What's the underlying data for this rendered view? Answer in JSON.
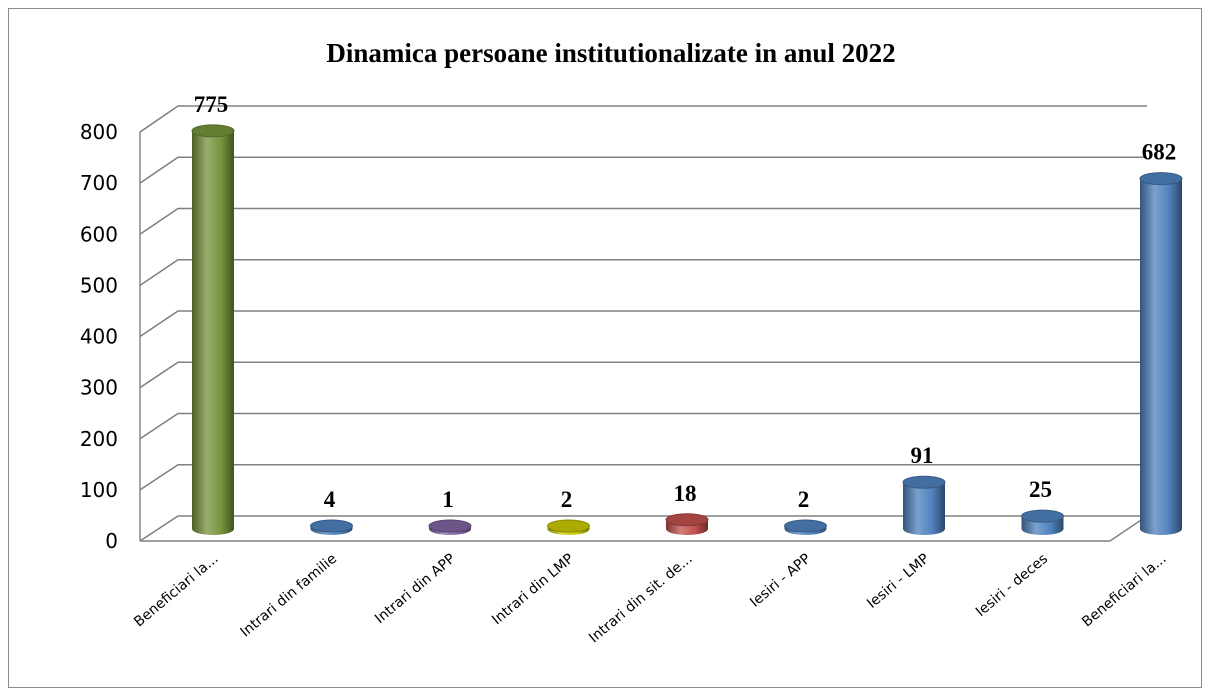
{
  "chart_data": {
    "type": "bar",
    "style": "3d-cylinder",
    "title": "Dinamica persoane institutionalizate in anul 2022",
    "xlabel": "",
    "ylabel": "",
    "ylim": [
      0,
      800
    ],
    "y_ticks": [
      "0",
      "100",
      "200",
      "300",
      "400",
      "500",
      "600",
      "700",
      "800"
    ],
    "grid": true,
    "legend": "none",
    "categories": [
      "Beneficiari la...",
      "Intrari din familie",
      "Intrari din APP",
      "Intrari din LMP",
      "Intrari din sit. de...",
      "Iesiri - APP",
      "Iesiri - LMP",
      "Iesiri - deces",
      "Beneficiari la..."
    ],
    "values": [
      775,
      4,
      1,
      2,
      18,
      2,
      91,
      25,
      682
    ],
    "data_labels": [
      "775",
      "4",
      "1",
      "2",
      "18",
      "2",
      "91",
      "25",
      "682"
    ],
    "bar_colors": [
      "#77933c",
      "#4f81bd",
      "#8064a2",
      "#c8c800",
      "#c0504d",
      "#4f81bd",
      "#4f81bd",
      "#4f81bd",
      "#4f81bd"
    ]
  }
}
